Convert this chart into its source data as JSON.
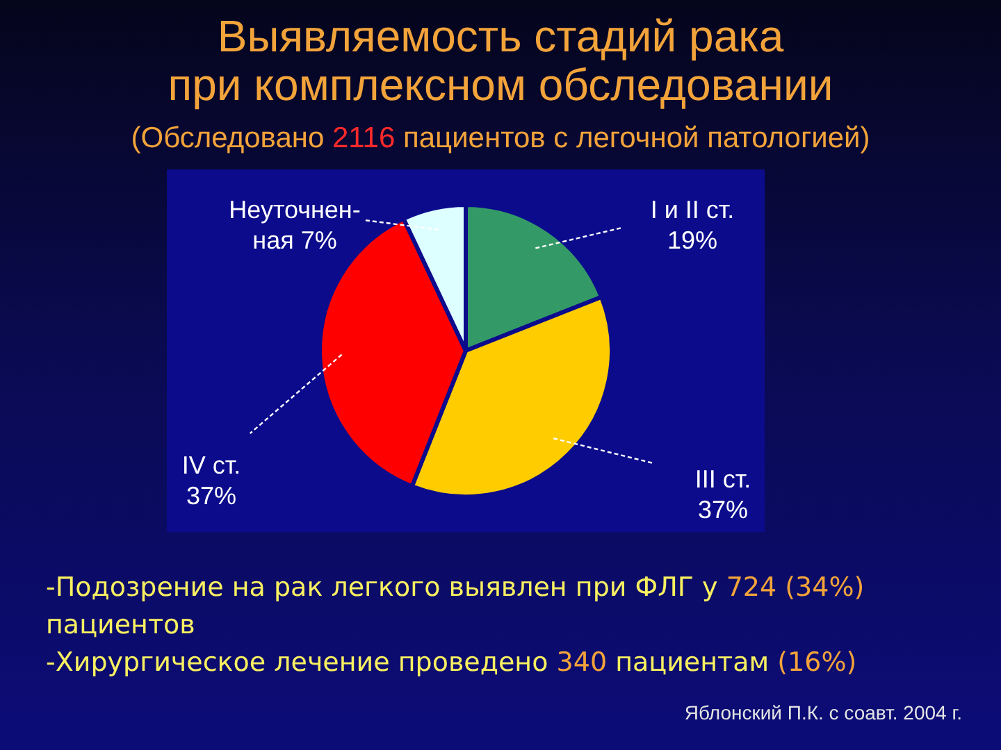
{
  "chart_data": {
    "type": "pie",
    "title": "Выявляемость стадий рака\nпри комплексном обследовании",
    "subtitle": "(Обследовано 2116 пациентов с легочной патологией)",
    "categories": [
      "I и II ст.",
      "III ст.",
      "IV ст.",
      "Неуточнен-ная"
    ],
    "values": [
      19,
      37,
      37,
      7
    ],
    "colors": [
      "#339966",
      "#ffcc00",
      "#ff0000",
      "#ddffff"
    ],
    "value_labels": [
      "19%",
      "37%",
      "37%",
      "7%"
    ],
    "annotations": [
      "-Подозрение на рак легкого выявлен при ФЛГ у 724 (34%) пациентов",
      "-Хирургическое лечение проведено 340 пациентам (16%)",
      "Яблонский П.К. с соавт. 2004 г."
    ]
  }
}
